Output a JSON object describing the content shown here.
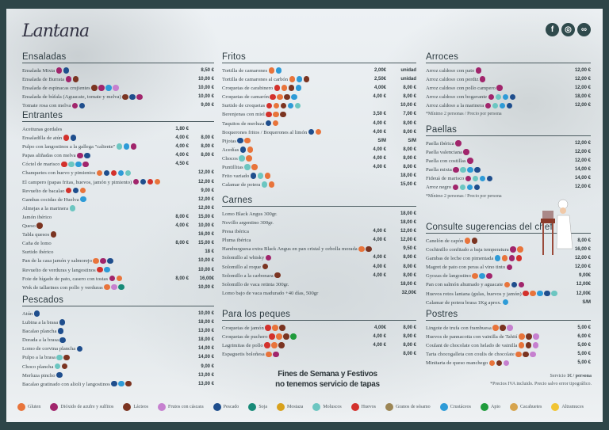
{
  "brand": {
    "name": "Lantana",
    "social": [
      {
        "name": "facebook",
        "glyph": "f"
      },
      {
        "name": "instagram",
        "glyph": "◎"
      },
      {
        "name": "tripadvisor",
        "glyph": "∞"
      }
    ]
  },
  "allergens": {
    "G": {
      "label": "Gluten",
      "name": "gluten",
      "color": "#e8743b"
    },
    "S": {
      "label": "Dióxido de azufre y sulfitos",
      "name": "sulphites",
      "color": "#a1256c"
    },
    "L": {
      "label": "Lácteos",
      "name": "dairy",
      "color": "#7b3421"
    },
    "F": {
      "label": "Frutos con cáscara",
      "name": "nuts",
      "color": "#c680cf"
    },
    "P": {
      "label": "Pescado",
      "name": "fish",
      "color": "#1f4e8d"
    },
    "J": {
      "label": "Soja",
      "name": "soy",
      "color": "#178a78"
    },
    "M": {
      "label": "Mostaza",
      "name": "mustard",
      "color": "#d8a11c"
    },
    "Mo": {
      "label": "Moluscos",
      "name": "molluscs",
      "color": "#6cc6c1"
    },
    "H": {
      "label": "Huevos",
      "name": "eggs",
      "color": "#d3312c"
    },
    "Se": {
      "label": "Granos de sésamo",
      "name": "sesame",
      "color": "#9c8655"
    },
    "C": {
      "label": "Crustáceos",
      "name": "crustaceans",
      "color": "#2e9bd7"
    },
    "A": {
      "label": "Apio",
      "name": "celery",
      "color": "#1f9b3b"
    },
    "Ca": {
      "label": "Cacahuetes",
      "name": "peanuts",
      "color": "#d6a44e"
    },
    "Al": {
      "label": "Altramuces",
      "name": "lupin",
      "color": "#f1c433"
    }
  },
  "legend_order": [
    "G",
    "S",
    "L",
    "F",
    "P",
    "J",
    "M",
    "Mo",
    "H",
    "Se",
    "C",
    "A",
    "Ca",
    "Al"
  ],
  "sections": {
    "ensaladas": {
      "title": "Ensaladas",
      "items": [
        {
          "name": "Ensalada Mixta",
          "a": [
            "S",
            "P"
          ],
          "p2": "8,50 €"
        },
        {
          "name": "Ensalada de Burrata",
          "a": [
            "S",
            "L"
          ],
          "p2": "10,00 €"
        },
        {
          "name": "Ensalada de espinacas crujientes",
          "a": [
            "L",
            "S",
            "C",
            "F"
          ],
          "p2": "10,00 €"
        },
        {
          "name": "Ensalada de búfala (Aguacate, tomate y melva)",
          "a": [
            "L",
            "P",
            "S"
          ],
          "p2": "10,00 €"
        },
        {
          "name": "Tomate rosa con melva",
          "a": [
            "S",
            "P"
          ],
          "p2": "9,00 €"
        }
      ]
    },
    "entrantes": {
      "title": "Entrantes",
      "items": [
        {
          "name": "Aceitunas gordales",
          "a": [],
          "p1": "1,80 €"
        },
        {
          "name": "Ensaladilla de atún",
          "a": [
            "H",
            "P"
          ],
          "p1": "4,00 €",
          "p2": "8,00 €"
        },
        {
          "name": "Pulpo con langostinos a la gallega \"caliente\"",
          "a": [
            "Mo",
            "C",
            "S"
          ],
          "p1": "4,00 €",
          "p2": "8,00 €"
        },
        {
          "name": "Papas aliñadas con melva",
          "a": [
            "S",
            "P"
          ],
          "p1": "4,00 €",
          "p2": "8,00 €"
        },
        {
          "name": "Cóctel de marisco",
          "a": [
            "H",
            "Mo",
            "C",
            "S"
          ],
          "p1": "4,50 €"
        },
        {
          "name": "Chanquetes con huevo y pimientos",
          "a": [
            "G",
            "P",
            "H",
            "C",
            "Mo"
          ],
          "p2": "12,00 €"
        },
        {
          "name": "El campero (papas fritas, huevos, jamón y pimiento)",
          "a": [
            "S",
            "P",
            "H",
            "G"
          ],
          "p2": "12,00 €"
        },
        {
          "name": "Revuelto de bacalao",
          "a": [
            "H",
            "P",
            "G"
          ],
          "p2": "9,00 €"
        },
        {
          "name": "Gambas cocidas de Huelva",
          "a": [
            "C"
          ],
          "p2": "12,00 €"
        },
        {
          "name": "Almejas a la marinera",
          "a": [
            "Mo"
          ],
          "p2": "12,00 €"
        },
        {
          "name": "Jamón ibérico",
          "a": [],
          "p1": "8,00 €",
          "p2": "15,00 €"
        },
        {
          "name": "Queso",
          "a": [
            "L"
          ],
          "p1": "4,00 €",
          "p2": "10,00 €"
        },
        {
          "name": "Tabla quesos",
          "a": [
            "L"
          ],
          "p2": "16,00 €"
        },
        {
          "name": "Caña de lomo",
          "a": [],
          "p1": "8,00 €",
          "p2": "15,00 €"
        },
        {
          "name": "Surtido ibérico",
          "a": [],
          "p2": "18 €"
        },
        {
          "name": "Pan de la casa jamón y salmorejo",
          "a": [
            "G",
            "S",
            "P"
          ],
          "p2": "10,00 €"
        },
        {
          "name": "Revuelto de verduras y langostinos",
          "a": [
            "H",
            "C"
          ],
          "p2": "10,00 €"
        },
        {
          "name": "Foie de hígado de pato, casero con tostas",
          "a": [
            "S",
            "G"
          ],
          "p1": "8,00 €",
          "p2": "16,00€"
        },
        {
          "name": "Wok de tallarines con pollo y verduras",
          "a": [
            "G",
            "F",
            "J"
          ],
          "p2": "10,00 €"
        }
      ]
    },
    "pescados": {
      "title": "Pescados",
      "items": [
        {
          "name": "Atún",
          "a": [
            "P"
          ],
          "p2": "10,00 €"
        },
        {
          "name": "Lubina a la brasa",
          "a": [
            "P"
          ],
          "p2": "18,00 €"
        },
        {
          "name": "Bacalao plancha",
          "a": [
            "P"
          ],
          "p2": "13,00 €"
        },
        {
          "name": "Dorada a la brasa",
          "a": [
            "P"
          ],
          "p2": "18,00 €"
        },
        {
          "name": "Lomo de corvina plancha",
          "a": [
            "P"
          ],
          "p2": "14,00 €"
        },
        {
          "name": "Pulpo a la brasa",
          "a": [
            "Mo",
            "L"
          ],
          "p2": "14,00 €"
        },
        {
          "name": "Choco plancha",
          "a": [
            "Mo",
            "L"
          ],
          "p2": "9,00 €"
        },
        {
          "name": "Merluza pincho",
          "a": [
            "P"
          ],
          "p2": "13,00 €"
        },
        {
          "name": "Bacalao gratinado con alioli y langostinos",
          "a": [
            "P",
            "C",
            "L"
          ],
          "p2": "13,00 €"
        }
      ]
    },
    "fritos": {
      "title": "Fritos",
      "items": [
        {
          "name": "Tortilla de camarones",
          "a": [
            "G",
            "C"
          ],
          "p1": "2,00€",
          "p2": "unidad"
        },
        {
          "name": "Tortilla de camarones al carbón",
          "a": [
            "G",
            "C",
            "L"
          ],
          "p1": "2,50€",
          "p2": "unidad"
        },
        {
          "name": "Croquetas de  carabinero",
          "a": [
            "H",
            "G",
            "L",
            "C"
          ],
          "p1": "4,00€",
          "p2": "8,00 €"
        },
        {
          "name": "Croquetas de camarón",
          "a": [
            "H",
            "G",
            "L",
            "C"
          ],
          "p1": "4,00 €",
          "p2": "8,00 €"
        },
        {
          "name": "Surtido de croquetas",
          "a": [
            "H",
            "G",
            "L",
            "C",
            "Mo"
          ],
          "p2": "10,00 €"
        },
        {
          "name": "Berenjenas con miel",
          "a": [
            "H",
            "G",
            "L"
          ],
          "p1": "3,50 €",
          "p2": "7,00 €"
        },
        {
          "name": "Taquitos de merluza",
          "a": [
            "P",
            "G"
          ],
          "p1": "4,00 €",
          "p2": "8,00 €"
        },
        {
          "name": "Boquerones fritos / Boquerones al limón",
          "a": [
            "P",
            "G"
          ],
          "p1": "4,00 €",
          "p2": "8,00 €"
        },
        {
          "name": "Pijotas",
          "a": [
            "P",
            "G"
          ],
          "p1": "S/M",
          "p2": "S/M"
        },
        {
          "name": "Acedías",
          "a": [
            "P",
            "G"
          ],
          "p1": "4,00 €",
          "p2": "8,00 €"
        },
        {
          "name": "Chocos",
          "a": [
            "Mo",
            "G"
          ],
          "p1": "4,00 €",
          "p2": "8,00 €"
        },
        {
          "name": "Puntillitas",
          "a": [
            "Mo",
            "G"
          ],
          "p1": "4,00 €",
          "p2": "8,00 €"
        },
        {
          "name": "Frito variado",
          "a": [
            "P",
            "Mo",
            "G"
          ],
          "p2": "18,00 €"
        },
        {
          "name": "Calamar de potera",
          "a": [
            "Mo",
            "G"
          ],
          "p2": "15,00 €"
        }
      ]
    },
    "carnes": {
      "title": "Carnes",
      "items": [
        {
          "name": "Lomo Black Angus 300gr.",
          "a": [],
          "p2": "18,00 €"
        },
        {
          "name": "Novillo argentino 300gr.",
          "a": [],
          "p2": "18,00 €"
        },
        {
          "name": "Presa ibérica",
          "a": [],
          "p1": "4,00 €",
          "p2": "12,00 €"
        },
        {
          "name": "Pluma ibérica",
          "a": [],
          "p1": "4,00 €",
          "p2": "12,00 €"
        },
        {
          "name": "Hamburguesa extra Black Angus en pan cristal y cebolla morada",
          "a": [
            "G",
            "L"
          ],
          "p2": "9,50 €"
        },
        {
          "name": "Solomillo al whisky",
          "a": [
            "S"
          ],
          "p1": "4,00 €",
          "p2": "8,00 €"
        },
        {
          "name": "Solomillo al roque",
          "a": [
            "L"
          ],
          "p1": "4,00 €",
          "p2": "8,00 €"
        },
        {
          "name": "Solomillo a la carbonara",
          "a": [
            "L"
          ],
          "p1": "4,00 €",
          "p2": "8,00 €"
        },
        {
          "name": "Solomillo de vaca retinta 300gr.",
          "a": [],
          "p2": "18,00 €"
        },
        {
          "name": "Lomo bajo de vaca madurado +40 días, 500gr",
          "a": [],
          "p2": "32,00€"
        }
      ]
    },
    "peques": {
      "title": "Para los peques",
      "items": [
        {
          "name": "Croquetas de  jamón",
          "a": [
            "H",
            "G",
            "L"
          ],
          "p1": "4,00€",
          "p2": "8,00 €"
        },
        {
          "name": "Croquetas de puchero",
          "a": [
            "H",
            "G",
            "L",
            "A"
          ],
          "p1": "4,00 €",
          "p2": "8,00 €"
        },
        {
          "name": "Lagrimitas de pollo",
          "a": [
            "H",
            "G",
            "L"
          ],
          "p1": "4,00 €",
          "p2": "8,00 €"
        },
        {
          "name": "Espaguetis boloñesa",
          "a": [
            "G",
            "S"
          ],
          "p2": "8,00 €"
        }
      ]
    },
    "arroces": {
      "title": "Arroces",
      "note": "*Mínimo 2 personas / Precio por persona",
      "items": [
        {
          "name": "Arroz caldoso con pato",
          "a": [
            "S"
          ],
          "p2": "12,00 €"
        },
        {
          "name": "Arroz caldoso con perdiz",
          "a": [
            "S"
          ],
          "p2": "12,00 €"
        },
        {
          "name": "Arroz caldoso con pollo campero",
          "a": [
            "S"
          ],
          "p2": "12,00 €"
        },
        {
          "name": "Arroz caldoso con bogavante",
          "a": [
            "S",
            "Mo",
            "C",
            "P"
          ],
          "p2": "18,00 €"
        },
        {
          "name": "Arroz caldoso a la marinera",
          "a": [
            "S",
            "Mo",
            "C",
            "P"
          ],
          "p2": "12,00 €"
        }
      ]
    },
    "paellas": {
      "title": "Paellas",
      "note": "*Mínimo 2 personas / Precio por persona",
      "items": [
        {
          "name": "Paella ibérica",
          "a": [
            "S"
          ],
          "p2": "12,00 €"
        },
        {
          "name": "Paella valenciana",
          "a": [
            "S"
          ],
          "p2": "12,00 €"
        },
        {
          "name": "Paella con costillas",
          "a": [
            "S"
          ],
          "p2": "12,00 €"
        },
        {
          "name": "Paella mixta",
          "a": [
            "S",
            "Mo",
            "C",
            "P"
          ],
          "p2": "14,00 €"
        },
        {
          "name": "Fideuá de marisco",
          "a": [
            "S",
            "Mo",
            "C",
            "P"
          ],
          "p2": "14,00 €"
        },
        {
          "name": "Arroz negro",
          "a": [
            "S",
            "Mo",
            "C",
            "P"
          ],
          "p2": "12,00 €"
        }
      ]
    },
    "chef": {
      "title": "Consulte sugerencias del chef",
      "items": [
        {
          "name": "Canelón de capón",
          "a": [
            "G",
            "L"
          ],
          "p2": "8,00 €"
        },
        {
          "name": "Cochinillo confitado a baja temperatura",
          "a": [
            "S",
            "G"
          ],
          "p2": "16,00 €"
        },
        {
          "name": "Gambas de leche con pimentada",
          "a": [
            "C",
            "G",
            "S",
            "H"
          ],
          "p2": "12,00 €"
        },
        {
          "name": "Magret de pato con peras al vino tinto",
          "a": [
            "S"
          ],
          "p2": "12,00 €"
        },
        {
          "name": "Gyozas de langostino",
          "a": [
            "G",
            "C",
            "S"
          ],
          "p2": "9,00€"
        },
        {
          "name": "Pan con salmón ahumado y aguacate",
          "a": [
            "G",
            "P",
            "S"
          ],
          "p2": "12,00€"
        },
        {
          "name": "Huevos rotos lantana (gulas, huevos y jamón)",
          "a": [
            "H",
            "G",
            "C",
            "P",
            "Mo"
          ],
          "p2": "12,00€"
        },
        {
          "name": "Calamar de potera brasa 1Kg aprox.",
          "a": [
            "C"
          ],
          "p2": "S/M"
        }
      ]
    },
    "postres": {
      "title": "Postres",
      "items": [
        {
          "name": "Lingote de trufa con frambuesa",
          "a": [
            "G",
            "L",
            "F"
          ],
          "p2": "5,00 €"
        },
        {
          "name": "Huevos de pannacotta con vainilla de Tahití",
          "a": [
            "G",
            "L",
            "F"
          ],
          "p2": "6,00 €"
        },
        {
          "name": "Coulant de chocolate con helado de vainilla",
          "a": [
            "G",
            "L",
            "F"
          ],
          "p2": "5,00 €"
        },
        {
          "name": "Tarta chocogalleta con coulis de chocolate",
          "a": [
            "G",
            "L",
            "F"
          ],
          "p2": "5,00 €"
        },
        {
          "name": "Minitarta de queso manchego",
          "a": [
            "G",
            "L",
            "F"
          ],
          "p2": "5,00 €"
        }
      ]
    }
  },
  "notice": {
    "line1": "Fines de Semana y Festivos",
    "line2": "no tenemos servicio de tapas"
  },
  "service": {
    "label": "Servicio",
    "value": "1€ / persona",
    "vat": "*Precios IVA incluido. Precio salvo error tipográfico."
  }
}
